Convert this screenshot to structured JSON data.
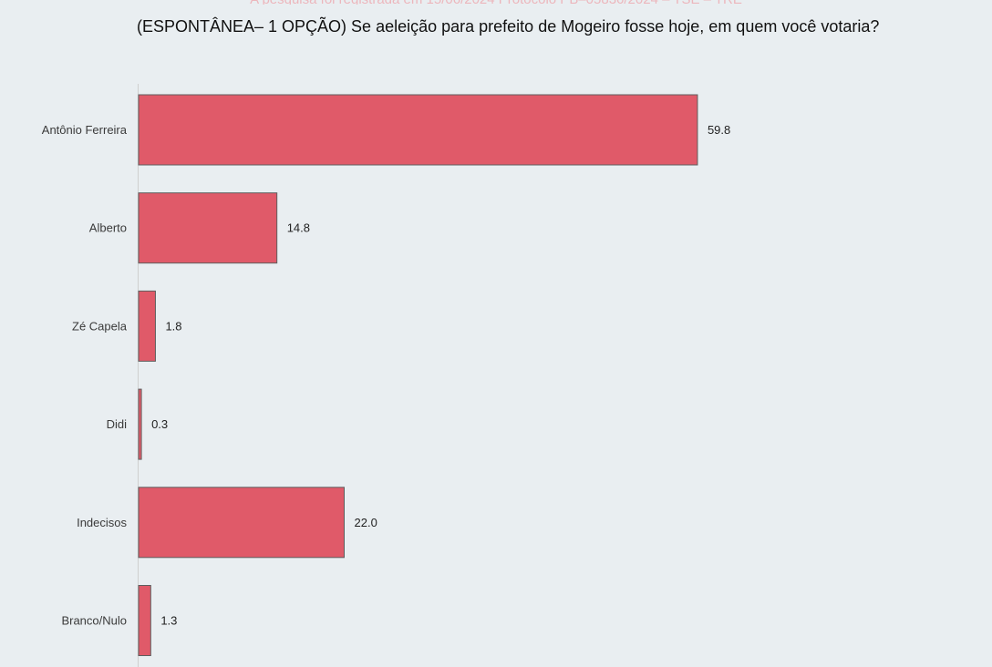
{
  "header": {
    "title": "(ESPONTÂNEA– 1 OPÇÃO) Se aeleição para prefeito de Mogeiro fosse hoje, em quem você votaria?"
  },
  "colors": {
    "bar": "#e05a69",
    "bar_stroke": "#5e5e5e",
    "background": "#e9eef1"
  },
  "chart_data": {
    "type": "bar",
    "orientation": "horizontal",
    "title": "(ESPONTÂNEA– 1 OPÇÃO) Se aeleição para prefeito de Mogeiro fosse hoje, em quem você votaria?",
    "categories": [
      "Antônio Ferreira",
      "Alberto",
      "Zé Capela",
      "Didi",
      "Indecisos",
      "Branco/Nulo"
    ],
    "values": [
      59.8,
      14.8,
      1.8,
      0.3,
      22.0,
      1.3
    ],
    "value_labels": [
      "59.8",
      "14.8",
      "1.8",
      "0.3",
      "22.0",
      "1.3"
    ],
    "xlabel": "",
    "ylabel": "",
    "xlim": [
      0,
      92
    ],
    "grid": false,
    "legend": "none"
  }
}
